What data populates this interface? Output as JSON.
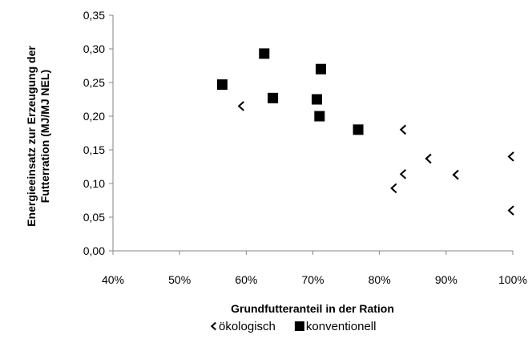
{
  "chart_data": {
    "type": "scatter",
    "xlabel": "Grundfutteranteil in der Ration",
    "ylabel_lines": [
      "Energieeinsatz zur Erzeugung der",
      "Futterration (MJ/MJ NEL)"
    ],
    "xlim": [
      0.4,
      1.0
    ],
    "ylim": [
      0.0,
      0.35
    ],
    "x_ticks": [
      0.4,
      0.5,
      0.6,
      0.7,
      0.8,
      0.9,
      1.0
    ],
    "x_tick_labels": [
      "40%",
      "50%",
      "60%",
      "70%",
      "80%",
      "90%",
      "100%"
    ],
    "y_ticks": [
      0.0,
      0.05,
      0.1,
      0.15,
      0.2,
      0.25,
      0.3,
      0.35
    ],
    "y_tick_labels": [
      "0,00",
      "0,05",
      "0,10",
      "0,15",
      "0,20",
      "0,25",
      "0,30",
      "0,35"
    ],
    "grid": false,
    "legend_position": "bottom",
    "series": [
      {
        "name": "ökologisch",
        "marker": "chevron-left",
        "color": "#000000",
        "points": [
          {
            "x": 0.593,
            "y": 0.215
          },
          {
            "x": 0.836,
            "y": 0.18
          },
          {
            "x": 0.874,
            "y": 0.137
          },
          {
            "x": 0.836,
            "y": 0.114
          },
          {
            "x": 0.915,
            "y": 0.113
          },
          {
            "x": 0.822,
            "y": 0.093
          },
          {
            "x": 0.998,
            "y": 0.14
          },
          {
            "x": 0.998,
            "y": 0.06
          }
        ]
      },
      {
        "name": "konventionell",
        "marker": "square",
        "color": "#000000",
        "points": [
          {
            "x": 0.564,
            "y": 0.247
          },
          {
            "x": 0.627,
            "y": 0.293
          },
          {
            "x": 0.64,
            "y": 0.227
          },
          {
            "x": 0.706,
            "y": 0.225
          },
          {
            "x": 0.712,
            "y": 0.27
          },
          {
            "x": 0.71,
            "y": 0.2
          },
          {
            "x": 0.768,
            "y": 0.18
          }
        ]
      }
    ]
  }
}
